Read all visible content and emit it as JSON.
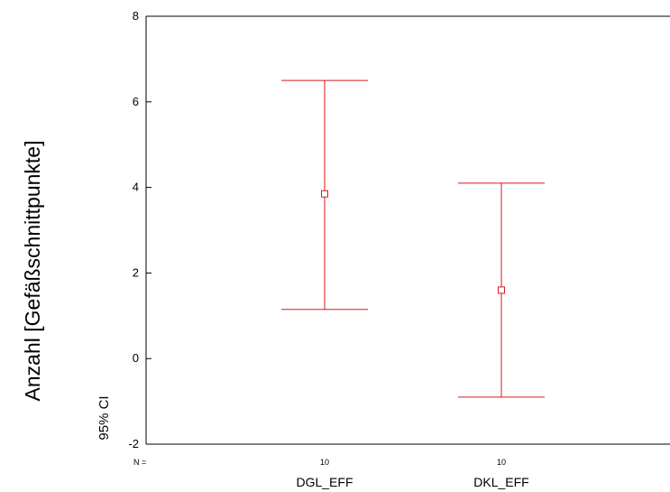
{
  "chart_data": {
    "type": "errorbar",
    "ylabel_outer": "Anzahl [Gefäßschnittpunkte]",
    "ylabel_inner": "95% CI",
    "ylim": [
      -2,
      8
    ],
    "yticks": [
      "8",
      "6",
      "4",
      "2",
      "0",
      "-2"
    ],
    "ytick_values": [
      8,
      6,
      4,
      2,
      0,
      -2
    ],
    "n_prefix": "N =",
    "categories": [
      "DGL_EFF",
      "DKL_EFF"
    ],
    "n_values": [
      "10",
      "10"
    ],
    "means": [
      3.85,
      1.6
    ],
    "lower": [
      1.15,
      -0.9
    ],
    "upper": [
      6.5,
      4.1
    ],
    "grid": false,
    "color": "#d7191c"
  }
}
